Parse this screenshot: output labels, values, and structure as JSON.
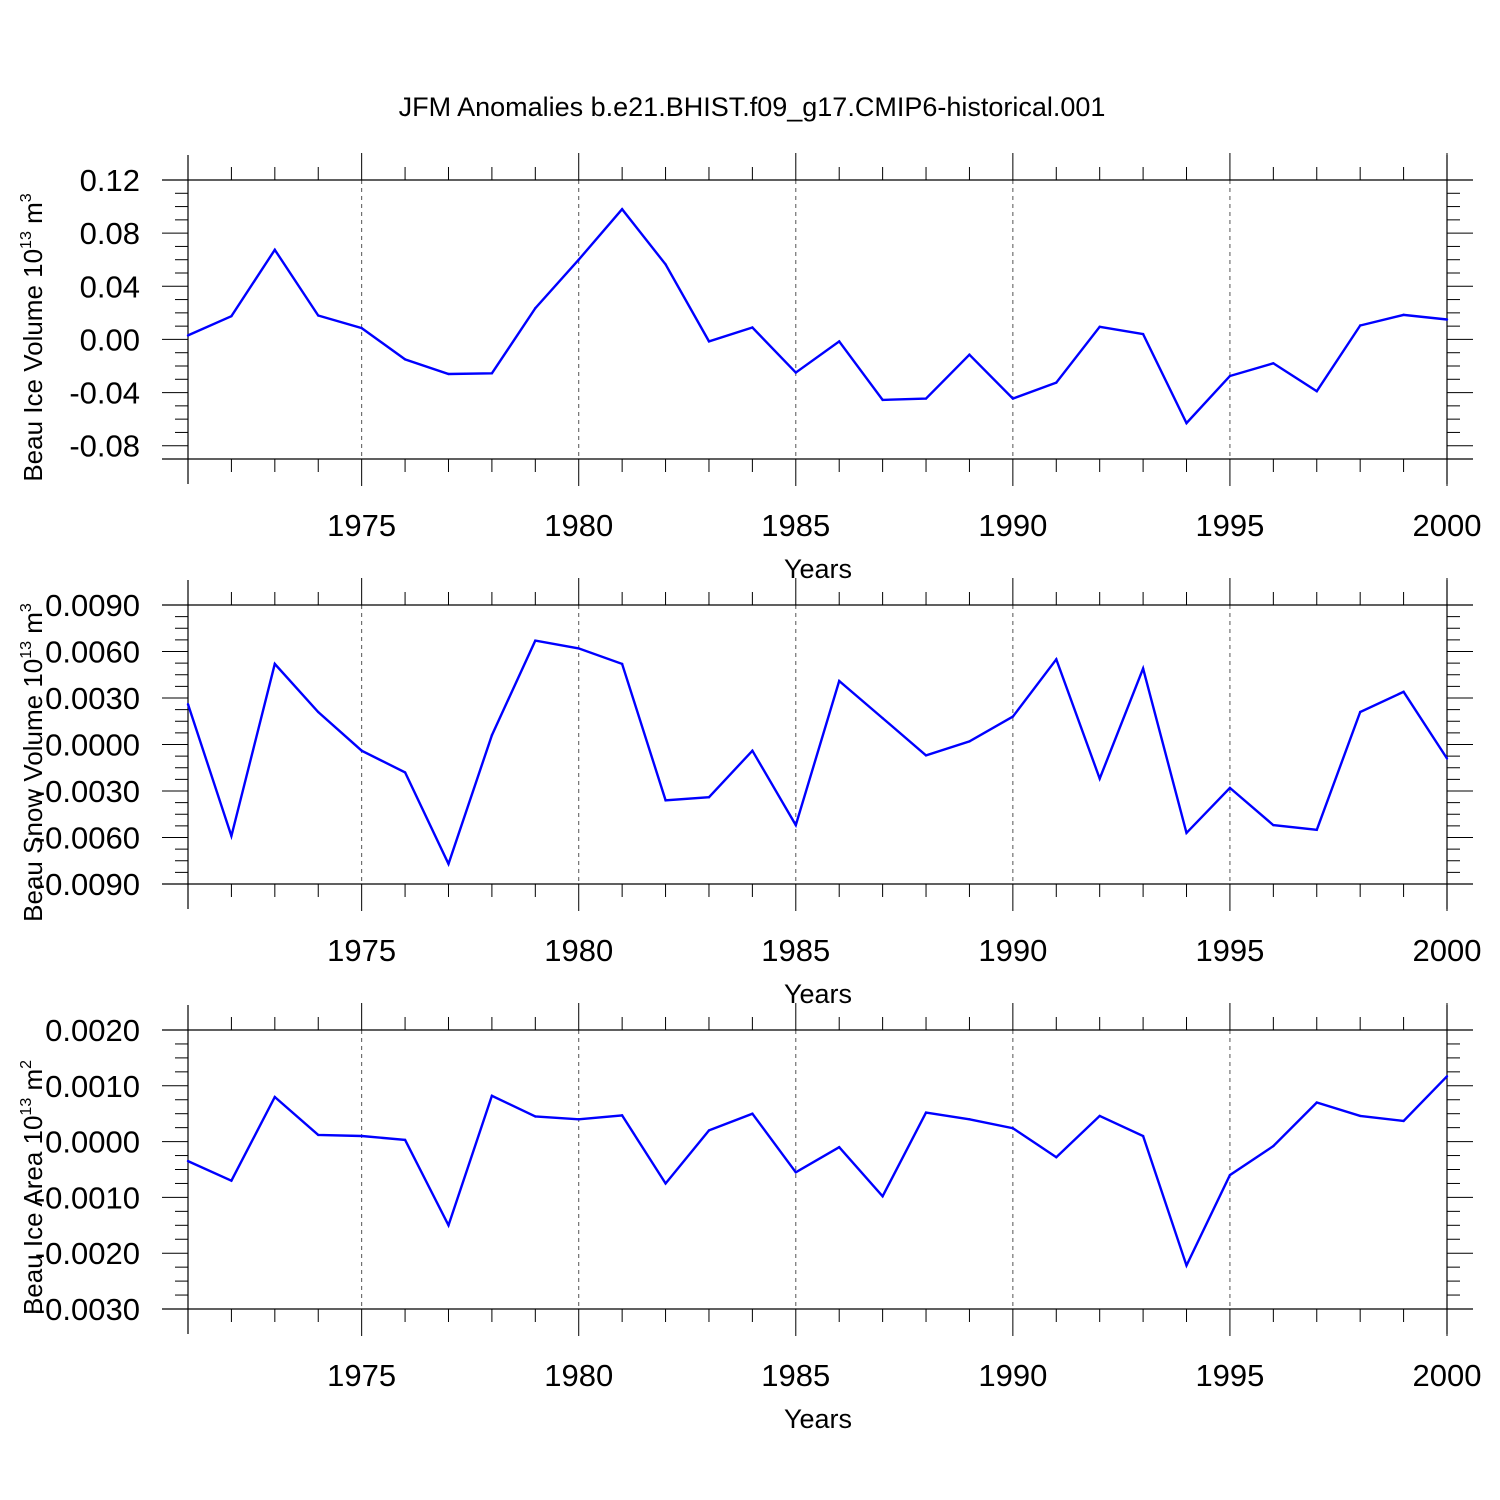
{
  "title": "JFM Anomalies b.e21.BHIST.f09_g17.CMIP6-historical.001",
  "colors": {
    "line": "#0000ff",
    "axis": "#000000",
    "grid": "#555555"
  },
  "chart_data": [
    {
      "type": "line",
      "ylabel": "Beau Ice Volume 10",
      "ylabel_sup": "13",
      "ylabel_unit": " m",
      "ylabel_unit_sup": "3",
      "xlabel": "Years",
      "xlim": [
        1971,
        2000
      ],
      "ylim": [
        -0.09,
        0.12
      ],
      "xticks": [
        1975,
        1980,
        1985,
        1990,
        1995,
        2000
      ],
      "yticks": [
        0.12,
        0.08,
        0.04,
        0.0,
        -0.04,
        -0.08
      ],
      "ytick_labels": [
        "0.12",
        "0.08",
        "0.04",
        "0.00",
        "-0.04",
        "-0.08"
      ],
      "grid": "vertical dashed at major x ticks",
      "series": [
        {
          "x": [
            1971,
            1972,
            1973,
            1974,
            1975,
            1976,
            1977,
            1978,
            1979,
            1980,
            1981,
            1982,
            1983,
            1984,
            1985,
            1986,
            1987,
            1988,
            1989,
            1990,
            1991,
            1992,
            1993,
            1994,
            1995,
            1996,
            1997,
            1998,
            1999,
            2000
          ],
          "values": [
            0.003,
            0.0175,
            0.0675,
            0.018,
            0.0085,
            -0.015,
            -0.026,
            -0.0255,
            0.0235,
            0.06,
            0.098,
            0.0565,
            -0.0015,
            0.009,
            -0.025,
            -0.0015,
            -0.0455,
            -0.0445,
            -0.0115,
            -0.0445,
            -0.0325,
            0.0095,
            0.004,
            -0.063,
            -0.0275,
            -0.018,
            -0.039,
            0.0105,
            0.0185,
            0.015
          ]
        }
      ]
    },
    {
      "type": "line",
      "ylabel": "Beau Snow Volume 10",
      "ylabel_sup": "13",
      "ylabel_unit": " m",
      "ylabel_unit_sup": "3",
      "xlabel": "Years",
      "xlim": [
        1971,
        2000
      ],
      "ylim": [
        -0.009,
        0.009
      ],
      "xticks": [
        1975,
        1980,
        1985,
        1990,
        1995,
        2000
      ],
      "yticks": [
        0.009,
        0.006,
        0.003,
        0.0,
        -0.003,
        -0.006,
        -0.009
      ],
      "ytick_labels": [
        "0.0090",
        "0.0060",
        "0.0030",
        "0.0000",
        "-0.0030",
        "-0.0060",
        "-0.0090"
      ],
      "grid": "vertical dashed at major x ticks",
      "series": [
        {
          "x": [
            1971,
            1972,
            1973,
            1974,
            1975,
            1976,
            1977,
            1978,
            1979,
            1980,
            1981,
            1982,
            1983,
            1984,
            1985,
            1986,
            1987,
            1988,
            1989,
            1990,
            1991,
            1992,
            1993,
            1994,
            1995,
            1996,
            1997,
            1998,
            1999,
            2000
          ],
          "values": [
            0.0026,
            -0.0059,
            0.0052,
            0.0021,
            -0.0004,
            -0.0018,
            -0.0077,
            0.0006,
            0.0067,
            0.0062,
            0.0052,
            -0.0036,
            -0.0034,
            -0.0004,
            -0.0052,
            0.0041,
            0.0017,
            -0.0007,
            0.0002,
            0.0018,
            0.0055,
            -0.0022,
            0.0049,
            -0.0057,
            -0.0028,
            -0.0052,
            -0.0055,
            0.0021,
            0.0034,
            -0.0009
          ]
        }
      ]
    },
    {
      "type": "line",
      "ylabel": "Beau Ice Area 10",
      "ylabel_sup": "13",
      "ylabel_unit": " m",
      "ylabel_unit_sup": "2",
      "xlabel": "Years",
      "xlim": [
        1971,
        2000
      ],
      "ylim": [
        -0.003,
        0.002
      ],
      "xticks": [
        1975,
        1980,
        1985,
        1990,
        1995,
        2000
      ],
      "yticks": [
        0.002,
        0.001,
        0.0,
        -0.001,
        -0.002,
        -0.003
      ],
      "ytick_labels": [
        "0.0020",
        "0.0010",
        "0.0000",
        "-0.0010",
        "-0.0020",
        "-0.0030"
      ],
      "grid": "vertical dashed at major x ticks",
      "series": [
        {
          "x": [
            1971,
            1972,
            1973,
            1974,
            1975,
            1976,
            1977,
            1978,
            1979,
            1980,
            1981,
            1982,
            1983,
            1984,
            1985,
            1986,
            1987,
            1988,
            1989,
            1990,
            1991,
            1992,
            1993,
            1994,
            1995,
            1996,
            1997,
            1998,
            1999,
            2000
          ],
          "values": [
            -0.00035,
            -0.0007,
            0.0008,
            0.00012,
            0.0001,
            3e-05,
            -0.0015,
            0.00082,
            0.00045,
            0.0004,
            0.00047,
            -0.00075,
            0.0002,
            0.0005,
            -0.00055,
            -0.0001,
            -0.00098,
            0.00052,
            0.0004,
            0.00024,
            -0.00028,
            0.00046,
            0.0001,
            -0.00222,
            -0.0006,
            -8e-05,
            0.0007,
            0.00046,
            0.00037,
            0.00117
          ]
        }
      ]
    }
  ]
}
